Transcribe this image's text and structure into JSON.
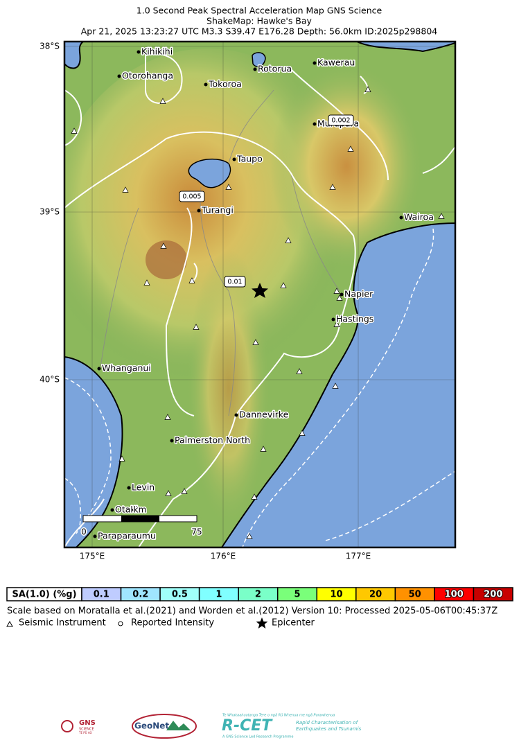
{
  "header": {
    "title_lines": [
      "1.0 Second Peak Spectral Acceleration Map GNS Science",
      "ShakeMap: Hawke's Bay",
      "Apr 21, 2025 13:23:27 UTC M3.3 S39.47 E176.28 Depth: 56.0km ID:2025p298804"
    ]
  },
  "map": {
    "lat_labels": [
      "38°S",
      "39°S",
      "40°S"
    ],
    "lon_labels": [
      "175°E",
      "176°E",
      "177°E"
    ],
    "places": [
      "Kihikihi",
      "Otorohanga",
      "Tokoroa",
      "Rotorua",
      "Kawerau",
      "Murupara",
      "Taupo",
      "Turangi",
      "Wairoa",
      "Napier",
      "Hastings",
      "Whanganui",
      "Dannevirke",
      "Palmerston North",
      "Levin",
      "Otaki",
      "Paraparaumu"
    ],
    "contour_labels": [
      "0.002",
      "0.005",
      "0.01"
    ],
    "scale_bar": [
      "0",
      "km",
      "75"
    ]
  },
  "legend": {
    "title": "SA(1.0) (%g)",
    "bins": [
      {
        "label": "0.1",
        "color": "#bfccff"
      },
      {
        "label": "0.2",
        "color": "#a0e6ff"
      },
      {
        "label": "0.5",
        "color": "#a0fffa"
      },
      {
        "label": "1",
        "color": "#80ffff"
      },
      {
        "label": "2",
        "color": "#7affc8"
      },
      {
        "label": "5",
        "color": "#7aff7a"
      },
      {
        "label": "10",
        "color": "#ffff00"
      },
      {
        "label": "20",
        "color": "#ffc800"
      },
      {
        "label": "50",
        "color": "#ff9100"
      },
      {
        "label": "100",
        "color": "#ff0000"
      },
      {
        "label": "200",
        "color": "#c80000"
      }
    ],
    "note": "Scale based on Moratalla et al.(2021) and Worden et al.(2012) Version 10: Processed 2025-05-06T00:45:37Z",
    "items": [
      "Seismic Instrument",
      "Reported Intensity",
      "Epicenter"
    ]
  },
  "logos": {
    "gns": [
      "GNS",
      "SCIENCE",
      "TE PŪ AO"
    ],
    "geonet": "GeoNet",
    "rcet": [
      "Te Whakaahuatanga Tere o ngā Rū Whenua me ngā Parawhenua",
      "R-CET",
      "Rapid Characterisation of",
      "Earthquakes and Tsunamis",
      "A GNS Science Led Research Programme"
    ]
  }
}
